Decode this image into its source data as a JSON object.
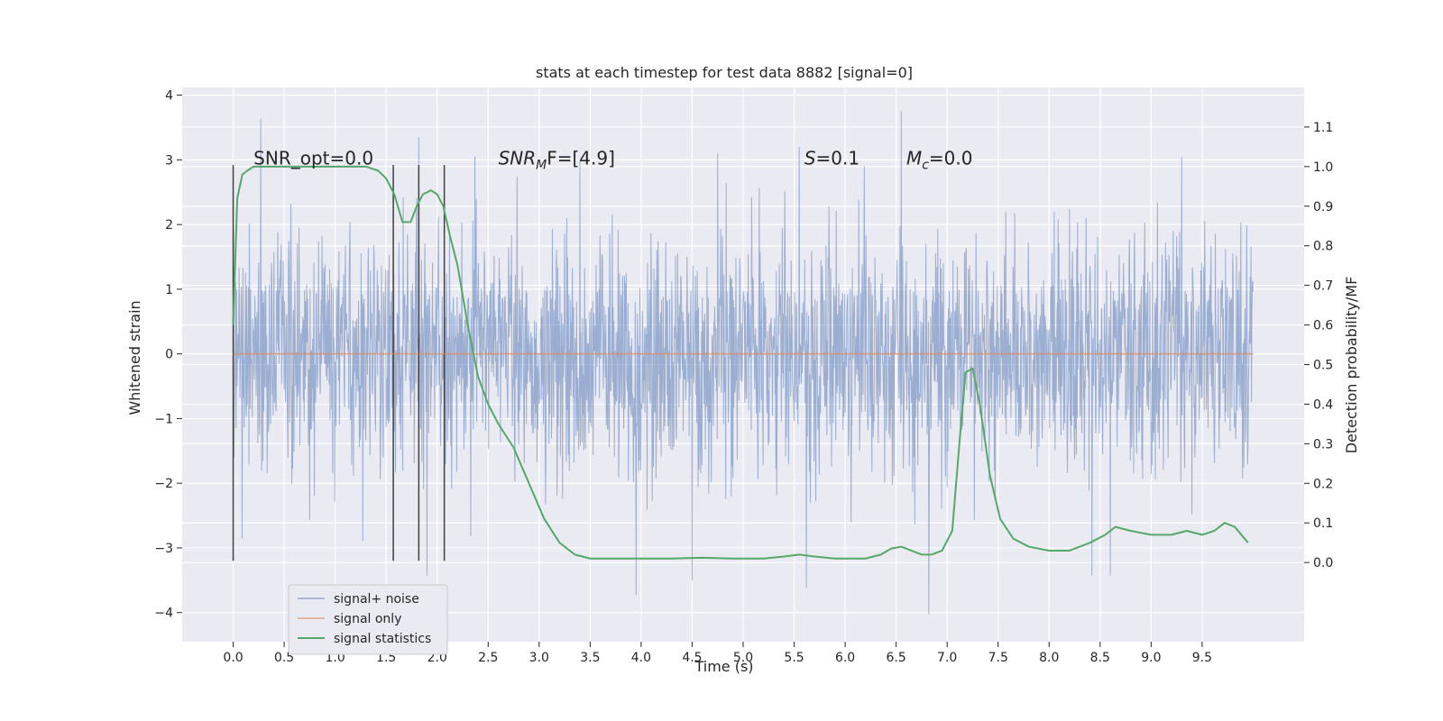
{
  "chart_data": {
    "type": "line",
    "title": "stats at each timestep for test data 8882 [signal=0]",
    "xlabel": "Time (s)",
    "ylabel": "Whitened strain",
    "y2label": "Detection probability/MF",
    "xlim": [
      -0.5,
      10.5
    ],
    "ylim": [
      -4.45,
      4.12
    ],
    "y2lim": [
      -0.2,
      1.2
    ],
    "x_ticks": [
      0.0,
      0.5,
      1.0,
      1.5,
      2.0,
      2.5,
      3.0,
      3.5,
      4.0,
      4.5,
      5.0,
      5.5,
      6.0,
      6.5,
      7.0,
      7.5,
      8.0,
      8.5,
      9.0,
      9.5
    ],
    "x_tick_labels": [
      "0.0",
      "0.5",
      "1.0",
      "1.5",
      "2.0",
      "2.5",
      "3.0",
      "3.5",
      "4.0",
      "4.5",
      "5.0",
      "5.5",
      "6.0",
      "6.5",
      "7.0",
      "7.5",
      "8.0",
      "8.5",
      "9.0",
      "9.5"
    ],
    "y_ticks": [
      -4,
      -3,
      -2,
      -1,
      0,
      1,
      2,
      3,
      4
    ],
    "y_tick_labels": [
      "−4",
      "−3",
      "−2",
      "−1",
      "0",
      "1",
      "2",
      "3",
      "4"
    ],
    "y2_ticks": [
      0.0,
      0.1,
      0.2,
      0.3,
      0.4,
      0.5,
      0.6,
      0.7,
      0.8,
      0.9,
      1.0,
      1.1
    ],
    "y2_tick_labels": [
      "0.0",
      "0.1",
      "0.2",
      "0.3",
      "0.4",
      "0.5",
      "0.6",
      "0.7",
      "0.8",
      "0.9",
      "1.0",
      "1.1"
    ],
    "grid": true,
    "legend_placement": "lower-left",
    "noise_envelope": {
      "t_start": 0.0,
      "t_end": 10.0,
      "peaks_high": [
        [
          0.27,
          3.63
        ],
        [
          1.82,
          3.35
        ],
        [
          6.55,
          3.75
        ],
        [
          5.55,
          3.2
        ],
        [
          4.75,
          3.1
        ],
        [
          9.3,
          3.05
        ],
        [
          3.4,
          3.0
        ],
        [
          2.37,
          3.05
        ]
      ],
      "peaks_low": [
        [
          1.9,
          -3.43
        ],
        [
          3.95,
          -3.73
        ],
        [
          5.62,
          -3.62
        ],
        [
          6.82,
          -4.03
        ],
        [
          8.42,
          -3.43
        ],
        [
          8.6,
          -3.43
        ],
        [
          4.5,
          -3.5
        ]
      ]
    },
    "series": [
      {
        "name": "signal+ noise",
        "color": "#4c72b0",
        "axis": "left",
        "kind": "noise"
      },
      {
        "name": "signal only",
        "color": "#dd8452",
        "axis": "left",
        "x": [
          0.0,
          10.0
        ],
        "y": [
          0.0,
          0.0
        ]
      },
      {
        "name": "signal statistics",
        "color": "#55a868",
        "axis": "right",
        "x": [
          0.0,
          0.04,
          0.09,
          0.14,
          0.2,
          0.3,
          0.5,
          0.8,
          1.1,
          1.3,
          1.42,
          1.5,
          1.58,
          1.66,
          1.74,
          1.8,
          1.86,
          1.94,
          2.0,
          2.06,
          2.13,
          2.2,
          2.3,
          2.4,
          2.5,
          2.6,
          2.75,
          2.9,
          3.05,
          3.2,
          3.35,
          3.5,
          3.7,
          4.0,
          4.3,
          4.6,
          4.9,
          5.2,
          5.4,
          5.55,
          5.7,
          5.9,
          6.2,
          6.35,
          6.45,
          6.55,
          6.65,
          6.75,
          6.85,
          6.95,
          7.05,
          7.12,
          7.18,
          7.25,
          7.32,
          7.42,
          7.52,
          7.65,
          7.8,
          8.0,
          8.2,
          8.4,
          8.55,
          8.65,
          8.8,
          9.0,
          9.2,
          9.35,
          9.5,
          9.62,
          9.72,
          9.82,
          9.95
        ],
        "y": [
          0.6,
          0.92,
          0.98,
          0.99,
          1.0,
          1.0,
          1.0,
          1.0,
          1.0,
          1.0,
          0.99,
          0.97,
          0.93,
          0.86,
          0.86,
          0.9,
          0.93,
          0.94,
          0.93,
          0.9,
          0.82,
          0.75,
          0.6,
          0.47,
          0.4,
          0.35,
          0.29,
          0.2,
          0.11,
          0.05,
          0.02,
          0.01,
          0.01,
          0.01,
          0.01,
          0.012,
          0.01,
          0.01,
          0.015,
          0.02,
          0.015,
          0.01,
          0.01,
          0.02,
          0.035,
          0.04,
          0.03,
          0.02,
          0.02,
          0.03,
          0.08,
          0.3,
          0.48,
          0.49,
          0.4,
          0.22,
          0.11,
          0.06,
          0.04,
          0.03,
          0.03,
          0.05,
          0.07,
          0.09,
          0.08,
          0.07,
          0.07,
          0.08,
          0.07,
          0.08,
          0.1,
          0.09,
          0.05
        ]
      }
    ],
    "vertical_lines": [
      {
        "x": 0.0,
        "ymin": -3.2,
        "ymax": 2.92
      },
      {
        "x": 1.57,
        "ymin": -3.2,
        "ymax": 2.92
      },
      {
        "x": 1.82,
        "ymin": -3.2,
        "ymax": 2.92
      },
      {
        "x": 2.07,
        "ymin": -3.2,
        "ymax": 2.92
      }
    ],
    "annotations": [
      {
        "text": "SNR_opt=0.0",
        "x": 0.2,
        "y": 3.0
      },
      {
        "text_main": "SNR",
        "text_sub": "M",
        "text_rest": "F=[4.9]",
        "x": 2.6,
        "y": 3.0
      },
      {
        "text_main": "S",
        "text_sub": "",
        "text_rest": "=0.1",
        "x": 5.6,
        "y": 3.0
      },
      {
        "text_main": "M",
        "text_sub": "c",
        "text_rest": "=0.0",
        "x": 6.6,
        "y": 3.0
      }
    ],
    "colors": {
      "background": "#eaeaf2",
      "grid": "#ffffff",
      "vline": "#404040"
    }
  }
}
